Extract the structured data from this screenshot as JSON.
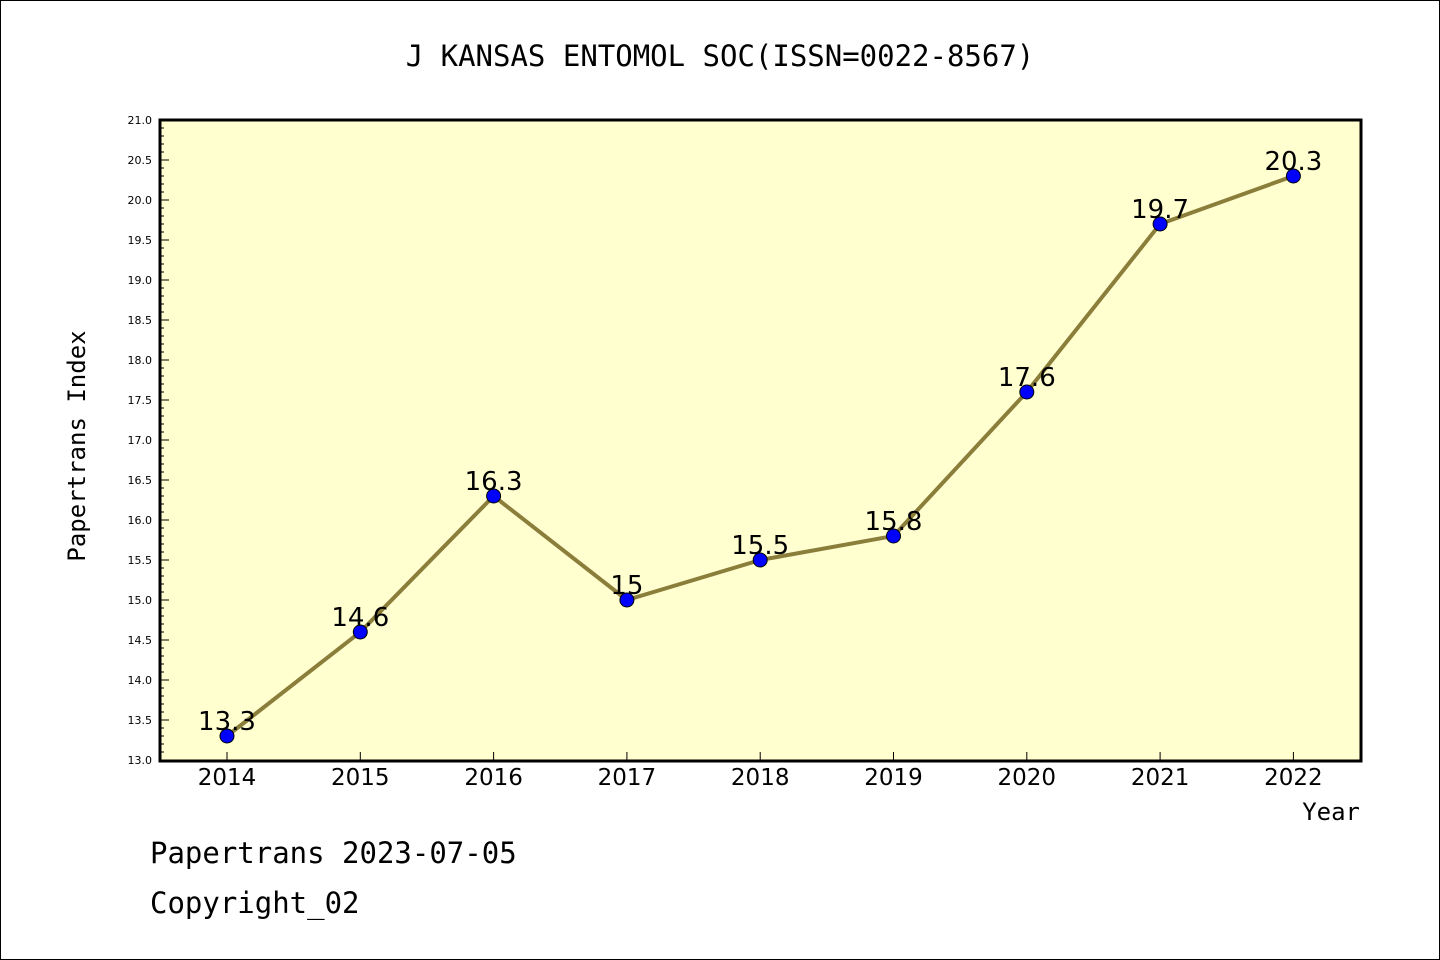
{
  "chart_data": {
    "type": "line",
    "title": "J KANSAS ENTOMOL SOC(ISSN=0022-8567)",
    "xlabel": "Year",
    "ylabel": "Papertrans Index",
    "categories": [
      "2014",
      "2015",
      "2016",
      "2017",
      "2018",
      "2019",
      "2020",
      "2021",
      "2022"
    ],
    "values": [
      13.3,
      14.6,
      16.3,
      15,
      15.5,
      15.8,
      17.6,
      19.7,
      20.3
    ],
    "data_labels": [
      "13.3",
      "14.6",
      "16.3",
      "15",
      "15.5",
      "15.8",
      "17.6",
      "19.7",
      "20.3"
    ],
    "ylim": [
      13.0,
      21.0
    ],
    "yticks": [
      "13.0",
      "13.5",
      "14.0",
      "14.5",
      "15.0",
      "15.5",
      "16.0",
      "16.5",
      "17.0",
      "17.5",
      "18.0",
      "18.5",
      "19.0",
      "19.5",
      "20.0",
      "20.5",
      "21.0"
    ],
    "grid": false,
    "colors": {
      "plot_background": "#ffffd0",
      "line": "#8b7d3a",
      "marker": "#0000ff"
    }
  },
  "footer": {
    "source": "Papertrans 2023-07-05",
    "copyright": "Copyright_02"
  }
}
